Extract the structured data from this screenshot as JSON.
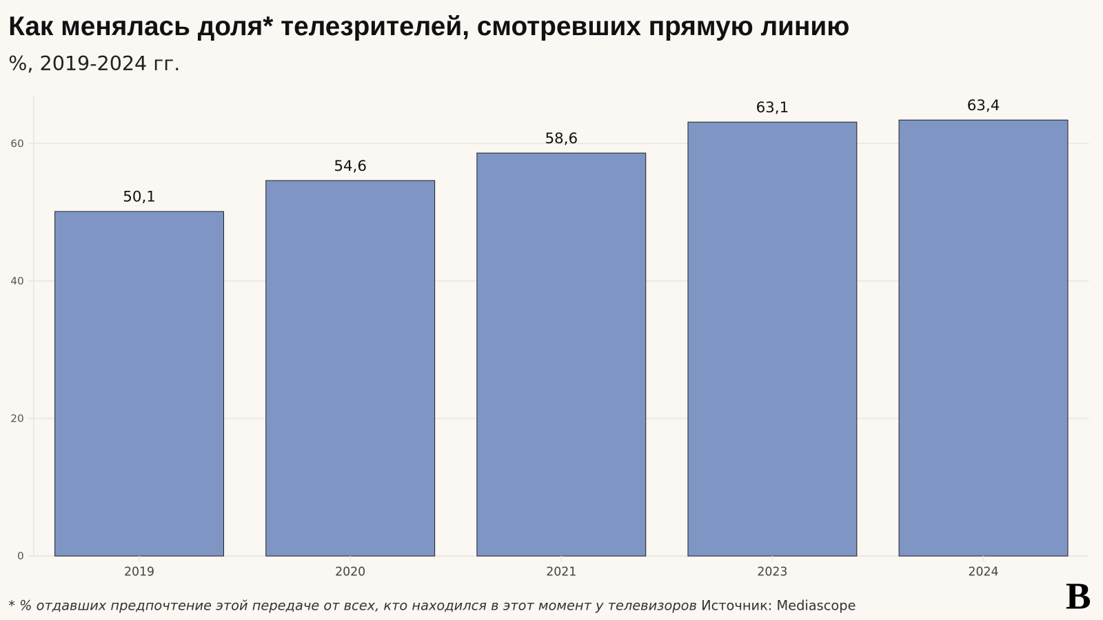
{
  "chart_data": {
    "type": "bar",
    "title": "Как менялась доля* телезрителей, смотревших прямую линию",
    "subtitle": "%, 2019-2024 гг.",
    "categories": [
      "2019",
      "2020",
      "2021",
      "2023",
      "2024"
    ],
    "values": [
      50.1,
      54.6,
      58.6,
      63.1,
      63.4
    ],
    "data_labels": [
      "50,1",
      "54,6",
      "58,6",
      "63,1",
      "63,4"
    ],
    "xlabel": "",
    "ylabel": "",
    "ylim": [
      0,
      67
    ],
    "yticks": [
      0,
      20,
      40,
      60
    ],
    "grid": true,
    "bar_color": "#7f96c5",
    "bar_edge_color": "#222222",
    "footnote": "* % отдавших предпочтение этой передаче от всех, кто находился в этот момент у телевизоров",
    "source": "Источник: Mediascope"
  },
  "logo": "B"
}
